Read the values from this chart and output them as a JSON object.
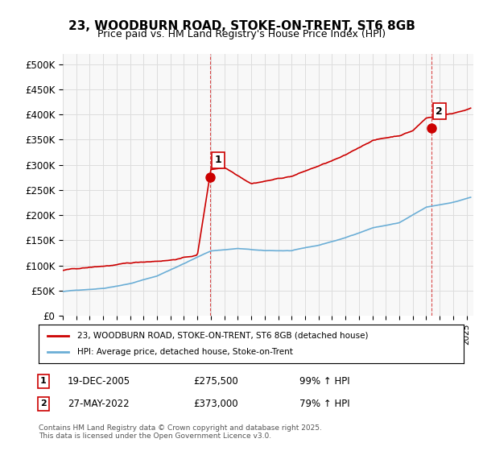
{
  "title_line1": "23, WOODBURN ROAD, STOKE-ON-TRENT, ST6 8GB",
  "title_line2": "Price paid vs. HM Land Registry's House Price Index (HPI)",
  "ylabel": "",
  "ylim": [
    0,
    520000
  ],
  "yticks": [
    0,
    50000,
    100000,
    150000,
    200000,
    250000,
    300000,
    350000,
    400000,
    450000,
    500000
  ],
  "ytick_labels": [
    "£0",
    "£50K",
    "£100K",
    "£150K",
    "£200K",
    "£250K",
    "£300K",
    "£350K",
    "£400K",
    "£450K",
    "£500K"
  ],
  "xlim_start": 1995.0,
  "xlim_end": 2025.5,
  "hpi_color": "#6baed6",
  "price_color": "#cc0000",
  "sale1_x": 2005.97,
  "sale1_y": 275500,
  "sale2_x": 2022.41,
  "sale2_y": 373000,
  "annotation1_label": "1",
  "annotation2_label": "2",
  "legend_line1": "23, WOODBURN ROAD, STOKE-ON-TRENT, ST6 8GB (detached house)",
  "legend_line2": "HPI: Average price, detached house, Stoke-on-Trent",
  "table_rows": [
    {
      "num": "1",
      "date": "19-DEC-2005",
      "price": "£275,500",
      "hpi": "99% ↑ HPI"
    },
    {
      "num": "2",
      "date": "27-MAY-2022",
      "price": "£373,000",
      "hpi": "79% ↑ HPI"
    }
  ],
  "footer": "Contains HM Land Registry data © Crown copyright and database right 2025.\nThis data is licensed under the Open Government Licence v3.0.",
  "background_color": "#f8f8f8",
  "grid_color": "#dddddd"
}
